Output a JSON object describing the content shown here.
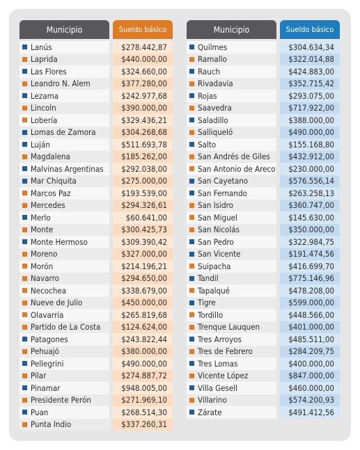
{
  "colors": {
    "square_blue": "#1e5d9a",
    "square_orange": "#e07b23",
    "header_gray": "#58585a",
    "header_orange": "#e07b23",
    "header_blue": "#1d7dc0"
  },
  "left_table": {
    "header": {
      "municipio": "Municipio",
      "sueldo": "Sueldo básico"
    },
    "rows": [
      {
        "name": "Lanús",
        "value": "$278.442,87",
        "marker": "blue"
      },
      {
        "name": "Laprida",
        "value": "$440.000,00",
        "marker": "orange"
      },
      {
        "name": "Las Flores",
        "value": "$324.660,00",
        "marker": "blue"
      },
      {
        "name": "Leandro N. Alem",
        "value": "$377.280,00",
        "marker": "orange"
      },
      {
        "name": "Lezama",
        "value": "$242.977,68",
        "marker": "blue"
      },
      {
        "name": "Lincoln",
        "value": "$390.000,00",
        "marker": "orange"
      },
      {
        "name": "Lobería",
        "value": "$329.436,21",
        "marker": "orange"
      },
      {
        "name": "Lomas de Zamora",
        "value": "$304.268,68",
        "marker": "blue"
      },
      {
        "name": "Luján",
        "value": "$511.693,78",
        "marker": "blue"
      },
      {
        "name": "Magdalena",
        "value": "$185.262,00",
        "marker": "orange"
      },
      {
        "name": "Malvinas Argentinas",
        "value": "$292.038,00",
        "marker": "blue"
      },
      {
        "name": "Mar Chiquita",
        "value": "$275.000,00",
        "marker": "blue"
      },
      {
        "name": "Marcos Paz",
        "value": "$193.539,00",
        "marker": "orange"
      },
      {
        "name": "Mercedes",
        "value": "$294.326,61",
        "marker": "orange"
      },
      {
        "name": "Merlo",
        "value": "$60.641,00",
        "marker": "blue"
      },
      {
        "name": "Monte",
        "value": "$300.425,73",
        "marker": "orange"
      },
      {
        "name": "Monte Hermoso",
        "value": "$309.390,42",
        "marker": "blue"
      },
      {
        "name": "Moreno",
        "value": "$327.000,00",
        "marker": "orange"
      },
      {
        "name": "Morón",
        "value": "$214.196,21",
        "marker": "orange"
      },
      {
        "name": "Navarro",
        "value": "$294.650,00",
        "marker": "orange"
      },
      {
        "name": "Necochea",
        "value": "$338.679,00",
        "marker": "orange"
      },
      {
        "name": "Nueve de Julio",
        "value": "$450.000,00",
        "marker": "orange"
      },
      {
        "name": "Olavarría",
        "value": "$265.819,68",
        "marker": "orange"
      },
      {
        "name": "Partido de La Costa",
        "value": "$124.624,00",
        "marker": "orange"
      },
      {
        "name": "Patagones",
        "value": "$243.822,44",
        "marker": "blue"
      },
      {
        "name": "Pehuajó",
        "value": "$380.000,00",
        "marker": "orange"
      },
      {
        "name": "Pellegrini",
        "value": "$490.000,00",
        "marker": "blue"
      },
      {
        "name": "Pilar",
        "value": "$274.887,72",
        "marker": "orange"
      },
      {
        "name": "Pinamar",
        "value": "$948.005,00",
        "marker": "blue"
      },
      {
        "name": "Presidente Perón",
        "value": "$271.969,10",
        "marker": "orange"
      },
      {
        "name": "Puan",
        "value": "$268.514,30",
        "marker": "blue"
      },
      {
        "name": "Punta Indio",
        "value": "$337.260,31",
        "marker": "orange"
      }
    ]
  },
  "right_table": {
    "header": {
      "municipio": "Municipio",
      "sueldo": "Sueldo básico"
    },
    "rows": [
      {
        "name": "Quilmes",
        "value": "$304.634,34",
        "marker": "blue"
      },
      {
        "name": "Ramallo",
        "value": "$322.014,88",
        "marker": "orange"
      },
      {
        "name": "Rauch",
        "value": "$424.883,00",
        "marker": "blue"
      },
      {
        "name": "Rivadavia",
        "value": "$352.715,42",
        "marker": "orange"
      },
      {
        "name": "Rojas",
        "value": "$293.075,00",
        "marker": "blue"
      },
      {
        "name": "Saavedra",
        "value": "$717.922,00",
        "marker": "orange"
      },
      {
        "name": "Saladillo",
        "value": "$388.000,00",
        "marker": "blue"
      },
      {
        "name": "Salliqueló",
        "value": "$490.000,00",
        "marker": "orange"
      },
      {
        "name": "Salto",
        "value": "$155.168,80",
        "marker": "blue"
      },
      {
        "name": "San Andrés de Giles",
        "value": "$432.912,00",
        "marker": "orange"
      },
      {
        "name": "San Antonio de Areco",
        "value": "$230.000,00",
        "marker": "orange"
      },
      {
        "name": "San Cayetano",
        "value": "$576.556,14",
        "marker": "blue"
      },
      {
        "name": "San Fernando",
        "value": "$263.258,13",
        "marker": "blue"
      },
      {
        "name": "San Isidro",
        "value": "$360.747,00",
        "marker": "orange"
      },
      {
        "name": "San Miguel",
        "value": "$145.630,00",
        "marker": "orange"
      },
      {
        "name": "San Nicolás",
        "value": "$350.000,00",
        "marker": "orange"
      },
      {
        "name": "San Pedro",
        "value": "$322.984,75",
        "marker": "blue"
      },
      {
        "name": "San Vicente",
        "value": "$191.474,56",
        "marker": "blue"
      },
      {
        "name": "Suipacha",
        "value": "$416.699,70",
        "marker": "orange"
      },
      {
        "name": "Tandil",
        "value": "$775.146,96",
        "marker": "blue"
      },
      {
        "name": "Tapalqué",
        "value": "$478.208,00",
        "marker": "orange"
      },
      {
        "name": "Tigre",
        "value": "$599.000,00",
        "marker": "blue"
      },
      {
        "name": "Tordillo",
        "value": "$448.566,00",
        "marker": "orange"
      },
      {
        "name": "Trenque Lauquen",
        "value": "$401.000,00",
        "marker": "orange"
      },
      {
        "name": "Tres Arroyos",
        "value": "$485.511,00",
        "marker": "blue"
      },
      {
        "name": "Tres de Febrero",
        "value": "$284.209,75",
        "marker": "orange"
      },
      {
        "name": "Tres Lomas",
        "value": "$400.000,00",
        "marker": "blue"
      },
      {
        "name": "Vicente López",
        "value": "$847.000,00",
        "marker": "orange"
      },
      {
        "name": "Villa Gesell",
        "value": "$460.000,00",
        "marker": "blue"
      },
      {
        "name": "Villarino",
        "value": "$574.200,93",
        "marker": "orange"
      },
      {
        "name": "Zárate",
        "value": "$491.412,56",
        "marker": "blue"
      }
    ]
  }
}
